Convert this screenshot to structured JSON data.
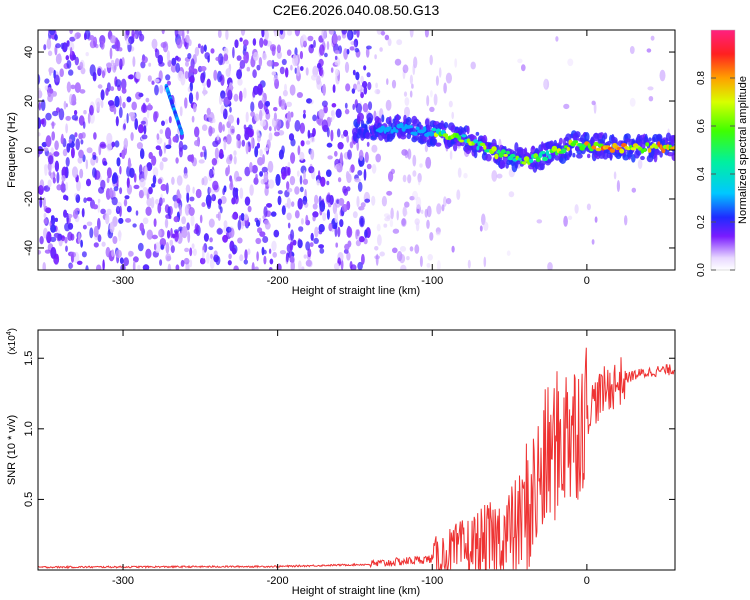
{
  "figure_title": "C2E6.2026.040.08.50.G13",
  "colorbar_label": "Normalized spectral amplitude",
  "chart_data": [
    {
      "type": "heatmap",
      "title": "C2E6.2026.040.08.50.G13",
      "xlabel": "Height of straight line (km)",
      "ylabel": "Frequency (Hz)",
      "xlim": [
        -355,
        57
      ],
      "ylim": [
        -49,
        49
      ],
      "xticks": [
        -300,
        -200,
        -100,
        0
      ],
      "yticks": [
        -40,
        -20,
        0,
        20,
        40
      ],
      "xtick_labels": [
        "-300",
        "-200",
        "-100",
        "0"
      ],
      "ytick_labels": [
        "-40",
        "-20",
        "0",
        "20",
        "40"
      ],
      "colorbar": {
        "label": "Normalized spectral amplitude",
        "range": [
          0,
          1
        ],
        "ticks": [
          0.0,
          0.2,
          0.4,
          0.6,
          0.8
        ],
        "tick_labels": [
          "0.0",
          "0.2",
          "0.4",
          "0.6",
          "0.8"
        ]
      },
      "ridge_trace": {
        "x": [
          -140,
          -120,
          -100,
          -80,
          -60,
          -40,
          -25,
          -10,
          0,
          20,
          55
        ],
        "y": [
          9,
          9,
          7,
          5,
          -1,
          -4,
          -2,
          2,
          2,
          1,
          1
        ]
      },
      "streak_trace": {
        "x": [
          -272,
          -262
        ],
        "y": [
          26,
          7
        ]
      }
    },
    {
      "type": "line",
      "xlabel": "Height of straight line (km)",
      "ylabel": "SNR (10 * v/v)",
      "y_multiplier_label": "(x10",
      "y_multiplier_exp": "4",
      "xlim": [
        -355,
        57
      ],
      "ylim": [
        0,
        1.7
      ],
      "xticks": [
        -300,
        -200,
        -100,
        0
      ],
      "yticks": [
        0.5,
        1.0,
        1.5
      ],
      "xtick_labels": [
        "-300",
        "-200",
        "-100",
        "0"
      ],
      "ytick_labels": [
        "0.5",
        "1.0",
        "1.5"
      ],
      "series": [
        {
          "name": "SNR",
          "color": "#ee3333",
          "envelope_x": [
            -355,
            -200,
            -140,
            -100,
            -80,
            -60,
            -45,
            -35,
            -25,
            -15,
            -10,
            -5,
            5,
            15,
            30,
            45,
            57
          ],
          "envelope_y": [
            0.02,
            0.025,
            0.04,
            0.08,
            0.14,
            0.2,
            0.3,
            0.5,
            0.8,
            0.95,
            0.95,
            1.05,
            1.2,
            1.3,
            1.38,
            1.41,
            1.42
          ]
        }
      ]
    }
  ]
}
